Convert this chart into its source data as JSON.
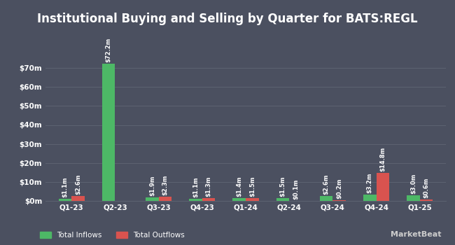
{
  "title": "Institutional Buying and Selling by Quarter for BATS:REGL",
  "quarters": [
    "Q1-23",
    "Q2-23",
    "Q3-23",
    "Q4-23",
    "Q1-24",
    "Q2-24",
    "Q3-24",
    "Q4-24",
    "Q1-25"
  ],
  "inflows": [
    1.1,
    72.2,
    1.9,
    1.1,
    1.4,
    1.5,
    2.6,
    3.2,
    3.0
  ],
  "outflows": [
    2.6,
    0.0,
    2.3,
    1.3,
    1.5,
    0.1,
    0.2,
    14.8,
    0.6
  ],
  "inflow_labels": [
    "$1.1m",
    "$72.2m",
    "$1.9m",
    "$1.1m",
    "$1.4m",
    "$1.5m",
    "$2.6m",
    "$3.2m",
    "$3.0m"
  ],
  "outflow_labels": [
    "$2.6m",
    "",
    "$2.3m",
    "$1.3m",
    "$1.5m",
    "$0.1m",
    "$0.2m",
    "$14.8m",
    "$0.6m"
  ],
  "inflow_color": "#4db866",
  "outflow_color": "#d9534f",
  "bg_color": "#4b5060",
  "plot_bg_color": "#4b5060",
  "text_color": "#ffffff",
  "grid_color": "#5c6270",
  "title_fontsize": 12,
  "tick_fontsize": 7.5,
  "label_fontsize": 6.0,
  "ylim": [
    0,
    80
  ],
  "yticks": [
    0,
    10,
    20,
    30,
    40,
    50,
    60,
    70
  ],
  "ytick_labels": [
    "$0m",
    "$10m",
    "$20m",
    "$30m",
    "$40m",
    "$50m",
    "$60m",
    "$70m"
  ],
  "bar_width": 0.3,
  "legend_labels": [
    "Total Inflows",
    "Total Outflows"
  ],
  "mb_text": "MarketBeat"
}
